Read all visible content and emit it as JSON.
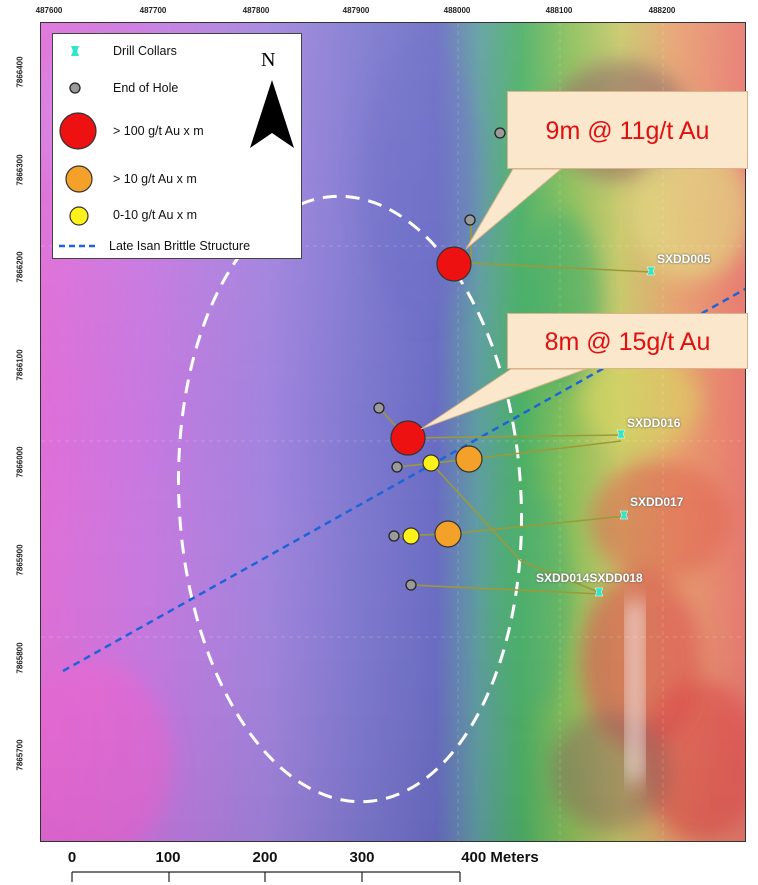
{
  "axes": {
    "top_ticks": [
      "487600",
      "487700",
      "487800",
      "487900",
      "488000",
      "488100",
      "488200"
    ],
    "left_ticks": [
      "7866400",
      "7866300",
      "7866200",
      "7866100",
      "7866000",
      "7865900",
      "7865800",
      "7865700"
    ]
  },
  "legend": {
    "items": [
      {
        "label": "Drill Collars",
        "icon": "drill-collar-icon",
        "color": "#2ee6c8"
      },
      {
        "label": "End of Hole",
        "icon": "end-of-hole-icon",
        "color": "#9a9a9a"
      },
      {
        "label": "> 100 g/t Au x m",
        "icon": "red-circle-icon",
        "color": "#ee1111"
      },
      {
        "label": ">  10 g/t Au x m",
        "icon": "orange-circle-icon",
        "color": "#f4a12a"
      },
      {
        "label": " 0-10 g/t Au x m",
        "icon": "yellow-circle-icon",
        "color": "#fff21a"
      },
      {
        "label": "Late Isan Brittle Structure",
        "icon": "dashed-line-icon",
        "color": "#1e64d8"
      }
    ]
  },
  "north_arrow": {
    "letter": "N",
    "icon": "north-arrow-icon"
  },
  "callouts": [
    {
      "text": "9m @ 11g/t Au"
    },
    {
      "text": "8m @ 15g/t Au"
    }
  ],
  "drill_holes": [
    {
      "label": "SXDD005"
    },
    {
      "label": "SXDD016"
    },
    {
      "label": "SXDD017"
    },
    {
      "label": "SXDD014SXDD018"
    }
  ],
  "scale_bar": {
    "labels": [
      "0",
      "100",
      "200",
      "300",
      "400 Meters"
    ]
  },
  "colors": {
    "ellipse": "#ffffff",
    "structure_line": "#1e64d8",
    "trace": "#9a9a3a",
    "callout_fill": "#fbe7cc",
    "callout_text": "#e11010"
  }
}
